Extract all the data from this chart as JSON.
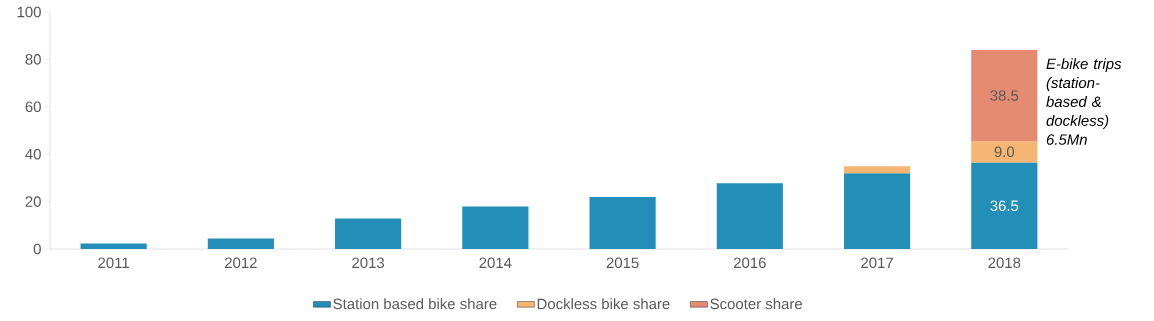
{
  "chart_data": {
    "type": "bar",
    "stacked": true,
    "categories": [
      "2011",
      "2012",
      "2013",
      "2014",
      "2015",
      "2016",
      "2017",
      "2018"
    ],
    "series": [
      {
        "name": "Station based bike share",
        "color": "#238fb8",
        "values": [
          2.3,
          4.4,
          12.9,
          17.9,
          21.9,
          27.7,
          32.0,
          36.5
        ],
        "value_labels": [
          null,
          null,
          null,
          null,
          null,
          null,
          null,
          "36.5"
        ]
      },
      {
        "name": "Dockless bike share",
        "color": "#f5b673",
        "values": [
          null,
          null,
          null,
          null,
          null,
          null,
          2.9,
          9.0
        ],
        "value_labels": [
          null,
          null,
          null,
          null,
          null,
          null,
          null,
          "9.0"
        ]
      },
      {
        "name": "Scooter share",
        "color": "#e58b72",
        "values": [
          null,
          null,
          null,
          null,
          null,
          null,
          null,
          38.5
        ],
        "value_labels": [
          null,
          null,
          null,
          null,
          null,
          null,
          null,
          "38.5"
        ]
      }
    ],
    "ylim": [
      0,
      100
    ],
    "yticks": [
      0,
      20,
      40,
      60,
      80,
      100
    ],
    "annotations": [
      "E-bike trips (station-based & dockless) 6.5Mn"
    ],
    "grid": false,
    "legend": "bottom"
  }
}
